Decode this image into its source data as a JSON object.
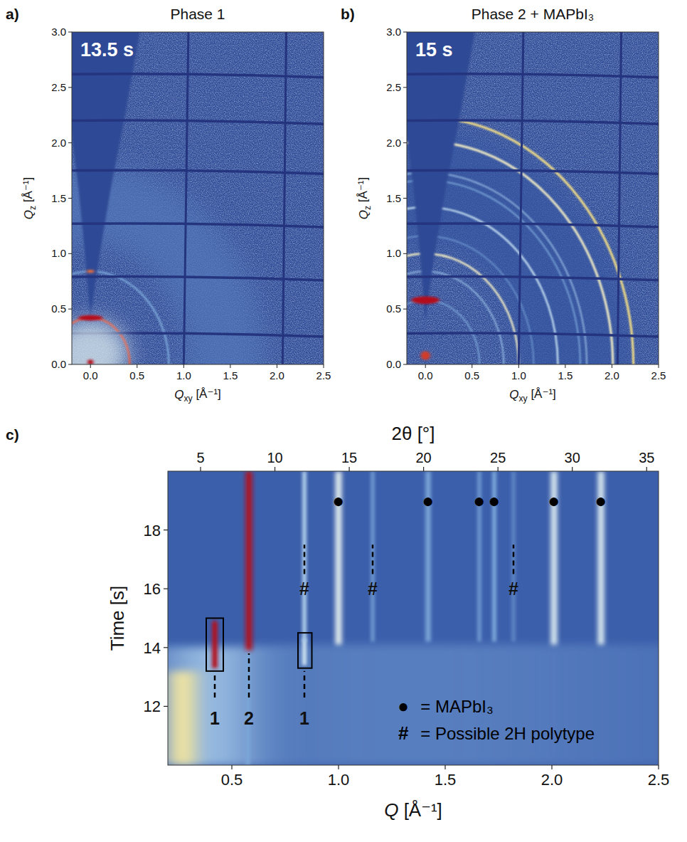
{
  "chart_data": [
    {
      "type": "giwaxs",
      "panel": "a)",
      "title": "Phase 1",
      "annotation": "13.5 s",
      "x_label": "Qxy [Å⁻¹]",
      "y_label": "Qz [Å⁻¹]",
      "xlim": [
        -0.2,
        2.5
      ],
      "ylim": [
        0,
        3
      ],
      "xticks": [
        {
          "value": 0,
          "label": "0.0"
        },
        0.5,
        {
          "value": 1,
          "label": "1.0"
        },
        1.5,
        {
          "value": 2,
          "label": "2.0"
        },
        2.5
      ],
      "yticks": [
        {
          "value": 0,
          "label": "0.0"
        },
        0.5,
        {
          "value": 1,
          "label": "1.0"
        },
        1.5,
        {
          "value": 2,
          "label": "2.0"
        },
        2.5,
        {
          "value": 3,
          "label": "3.0"
        }
      ],
      "background": 0.14,
      "rings": [
        {
          "q": 1.45,
          "width": 0.8,
          "intensity": 0.32
        },
        {
          "q": 0.42,
          "width": 0.025,
          "intensity": 0.95
        },
        {
          "q": 0.84,
          "width": 0.02,
          "intensity": 0.45
        }
      ],
      "spots": [
        {
          "qxy": 0,
          "qz": 0.1,
          "width": 0.8,
          "height": 0.6,
          "intensity": 0.66
        },
        {
          "qxy": 0,
          "qz": 0.42,
          "width": 0.26,
          "height": 0.05,
          "intensity": 1
        },
        {
          "qxy": 0,
          "qz": 0.84,
          "width": 0.08,
          "height": 0.03,
          "intensity": 0.9
        },
        {
          "qxy": 0,
          "qz": 0.02,
          "width": 0.06,
          "height": 0.05,
          "intensity": 1
        }
      ]
    },
    {
      "type": "giwaxs",
      "panel": "b)",
      "title": "Phase 2 + MAPbI₃",
      "annotation": "15 s",
      "x_label": "Qxy [Å⁻¹]",
      "y_label": "Qz [Å⁻¹]",
      "xlim": [
        -0.2,
        2.5
      ],
      "ylim": [
        0,
        3
      ],
      "xticks": [
        {
          "value": 0,
          "label": "0.0"
        },
        0.5,
        {
          "value": 1,
          "label": "1.0"
        },
        1.5,
        {
          "value": 2,
          "label": "2.0"
        },
        2.5
      ],
      "yticks": [
        {
          "value": 0,
          "label": "0.0"
        },
        0.5,
        {
          "value": 1,
          "label": "1.0"
        },
        1.5,
        {
          "value": 2,
          "label": "2.0"
        },
        2.5,
        {
          "value": 3,
          "label": "3.0"
        }
      ],
      "background": 0.14,
      "rings": [
        {
          "q": 1.6,
          "width": 1.2,
          "intensity": 0.2
        },
        {
          "q": 0.58,
          "width": 0.015,
          "intensity": 0.45
        },
        {
          "q": 0.84,
          "width": 0.015,
          "intensity": 0.5
        },
        {
          "q": 1.0,
          "width": 0.02,
          "intensity": 0.75
        },
        {
          "q": 1.16,
          "width": 0.015,
          "intensity": 0.4
        },
        {
          "q": 1.42,
          "width": 0.02,
          "intensity": 0.6
        },
        {
          "q": 1.66,
          "width": 0.015,
          "intensity": 0.45
        },
        {
          "q": 1.73,
          "width": 0.015,
          "intensity": 0.5
        },
        {
          "q": 2.01,
          "width": 0.025,
          "intensity": 0.75
        },
        {
          "q": 2.23,
          "width": 0.025,
          "intensity": 0.8
        }
      ],
      "spots": [
        {
          "qxy": 0,
          "qz": 0.58,
          "width": 0.3,
          "height": 0.07,
          "intensity": 1
        },
        {
          "qxy": 0,
          "qz": 0.08,
          "width": 0.1,
          "height": 0.08,
          "intensity": 0.95
        }
      ]
    },
    {
      "type": "heatmap",
      "panel": "c)",
      "x_label": "Q [Å⁻¹]",
      "x2_label": "2θ [°]",
      "y_label": "Time [s]",
      "xlim": [
        0.2,
        2.5
      ],
      "x2lim": [
        2.8,
        35.8
      ],
      "ylim": [
        10,
        20
      ],
      "xticks": [
        0.5,
        {
          "value": 1,
          "label": "1.0"
        },
        1.5,
        {
          "value": 2,
          "label": "2.0"
        },
        2.5
      ],
      "x2ticks": [
        5,
        10,
        15,
        20,
        25,
        30,
        35
      ],
      "yticks": [
        12,
        14,
        16,
        18
      ],
      "background": 0.25,
      "features": [
        {
          "q": 1.35,
          "width": 2.3,
          "t_start": 10,
          "t_end": 14.1,
          "intensity": 0.35
        },
        {
          "q": 0.4,
          "width": 0.35,
          "t_start": 10,
          "t_end": 14,
          "intensity": 0.52
        },
        {
          "q": 0.27,
          "width": 0.12,
          "t_start": 10,
          "t_end": 13.2,
          "intensity": 0.78
        },
        {
          "q": 0.575,
          "width": 0.02,
          "t_start": 10,
          "t_end": 14,
          "intensity": 0.45
        },
        {
          "q": 0.42,
          "width": 0.025,
          "t_start": 13.3,
          "t_end": 14.9,
          "intensity": 1
        },
        {
          "q": 0.84,
          "width": 0.02,
          "t_start": 13.4,
          "t_end": 14.3,
          "intensity": 0.62
        },
        {
          "q": 0.58,
          "width": 0.03,
          "t_start": 13.9,
          "t_end": 20,
          "intensity": 1
        },
        {
          "q": 0.84,
          "width": 0.02,
          "t_start": 14.2,
          "t_end": 20,
          "intensity": 0.55
        },
        {
          "q": 1.0,
          "width": 0.03,
          "t_start": 14.1,
          "t_end": 20,
          "intensity": 0.68
        },
        {
          "q": 1.16,
          "width": 0.02,
          "t_start": 14.2,
          "t_end": 20,
          "intensity": 0.4
        },
        {
          "q": 1.42,
          "width": 0.025,
          "t_start": 14.2,
          "t_end": 20,
          "intensity": 0.45
        },
        {
          "q": 1.66,
          "width": 0.02,
          "t_start": 14.2,
          "t_end": 20,
          "intensity": 0.4
        },
        {
          "q": 1.73,
          "width": 0.02,
          "t_start": 14.2,
          "t_end": 20,
          "intensity": 0.45
        },
        {
          "q": 1.82,
          "width": 0.02,
          "t_start": 14.2,
          "t_end": 20,
          "intensity": 0.35
        },
        {
          "q": 2.01,
          "width": 0.03,
          "t_start": 14.1,
          "t_end": 20,
          "intensity": 0.65
        },
        {
          "q": 2.23,
          "width": 0.03,
          "t_start": 14.1,
          "t_end": 20,
          "intensity": 0.65
        }
      ],
      "boxes": [
        {
          "qlim": [
            0.38,
            0.46
          ],
          "tlim": [
            13.2,
            15.0
          ]
        },
        {
          "qlim": [
            0.81,
            0.875
          ],
          "tlim": [
            13.3,
            14.5
          ]
        }
      ],
      "peak_labels": [
        {
          "text": "1",
          "q": 0.42,
          "t": 11.6,
          "line_t": [
            12.3,
            13.1
          ]
        },
        {
          "text": "2",
          "q": 0.58,
          "t": 11.6,
          "line_t": [
            12.3,
            13.8
          ]
        },
        {
          "text": "1",
          "q": 0.84,
          "t": 11.6,
          "line_t": [
            12.3,
            13.2
          ]
        }
      ],
      "hashes": [
        {
          "text": "#",
          "q": 0.84,
          "t": 16,
          "line_t": [
            16.5,
            17.5
          ]
        },
        {
          "text": "#",
          "q": 1.16,
          "t": 16,
          "line_t": [
            16.5,
            17.5
          ]
        },
        {
          "text": "#",
          "q": 1.82,
          "t": 16,
          "line_t": [
            16.5,
            17.5
          ]
        }
      ],
      "markers": [
        {
          "symbol": "●",
          "q": 1.0,
          "t": 19
        },
        {
          "symbol": "●",
          "q": 1.42,
          "t": 19
        },
        {
          "symbol": "●",
          "q": 1.66,
          "t": 19
        },
        {
          "symbol": "●",
          "q": 1.73,
          "t": 19
        },
        {
          "symbol": "●",
          "q": 2.01,
          "t": 19
        },
        {
          "symbol": "●",
          "q": 2.23,
          "t": 19
        }
      ],
      "legend": "lower right",
      "legend_items": [
        {
          "symbol": "●",
          "text": "= MAPbI₃"
        },
        {
          "symbol": "#",
          "text": "= Possible 2H polytype"
        }
      ]
    }
  ]
}
